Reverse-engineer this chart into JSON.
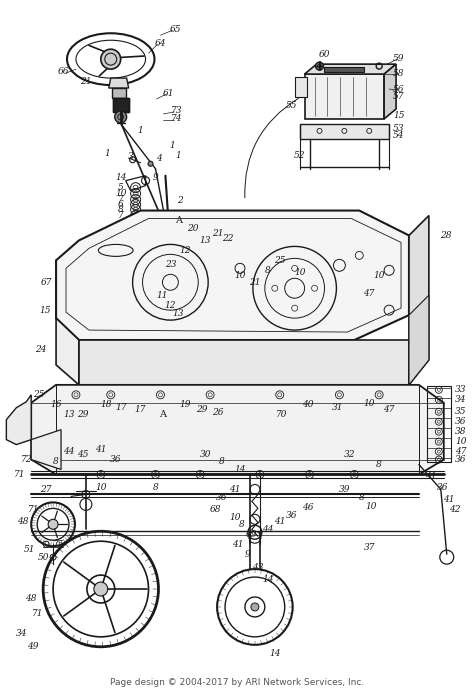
{
  "footer": "Page design © 2004-2017 by ARI Network Services, Inc.",
  "footer_fontsize": 6.5,
  "bg_color": "#ffffff",
  "line_color": "#1a1a1a",
  "fig_width": 4.74,
  "fig_height": 6.94,
  "dpi": 100,
  "label_fontsize": 6.5
}
